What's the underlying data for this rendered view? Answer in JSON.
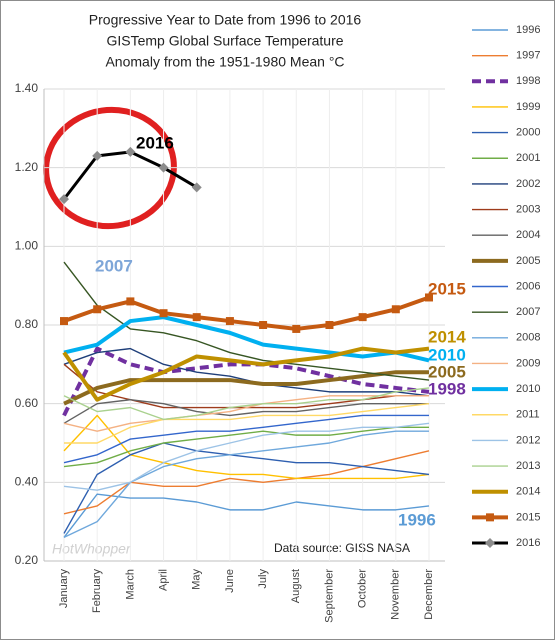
{
  "chart_data": {
    "type": "line",
    "title": [
      "Progressive Year to Date from 1996 to 2016",
      "GISTemp Global Surface Temperature",
      "Anomaly from the 1951-1980 Mean °C"
    ],
    "categories": [
      "January",
      "February",
      "March",
      "April",
      "May",
      "June",
      "July",
      "August",
      "September",
      "October",
      "November",
      "December"
    ],
    "ylim": [
      0.2,
      1.4
    ],
    "yticks": [
      {
        "value": 0.2,
        "label": "0.20"
      },
      {
        "value": 0.4,
        "label": "0.40"
      },
      {
        "value": 0.6,
        "label": "0.60"
      },
      {
        "value": 0.8,
        "label": "0.80"
      },
      {
        "value": 1.0,
        "label": "1.00"
      },
      {
        "value": 1.2,
        "label": "1.20"
      },
      {
        "value": 1.4,
        "label": "1.40"
      }
    ],
    "grid": true,
    "legend": "right",
    "series": [
      {
        "name": "1996",
        "color": "#5b9bd5",
        "values": [
          0.26,
          0.37,
          0.36,
          0.36,
          0.35,
          0.33,
          0.33,
          0.35,
          0.34,
          0.33,
          0.33,
          0.34
        ]
      },
      {
        "name": "1997",
        "color": "#ed7d31",
        "values": [
          0.32,
          0.34,
          0.4,
          0.39,
          0.39,
          0.41,
          0.4,
          0.41,
          0.42,
          0.44,
          0.46,
          0.48
        ]
      },
      {
        "name": "1998",
        "color": "#7030a0",
        "bold": true,
        "dashed": true,
        "values": [
          0.57,
          0.74,
          0.7,
          0.68,
          0.69,
          0.7,
          0.7,
          0.69,
          0.67,
          0.65,
          0.64,
          0.63
        ]
      },
      {
        "name": "1999",
        "color": "#ffc000",
        "values": [
          0.48,
          0.57,
          0.47,
          0.45,
          0.43,
          0.42,
          0.42,
          0.41,
          0.41,
          0.41,
          0.41,
          0.42
        ]
      },
      {
        "name": "2000",
        "color": "#2e5fb0",
        "values": [
          0.27,
          0.42,
          0.47,
          0.5,
          0.48,
          0.47,
          0.46,
          0.45,
          0.45,
          0.44,
          0.43,
          0.42
        ]
      },
      {
        "name": "2001",
        "color": "#70ad47",
        "values": [
          0.44,
          0.45,
          0.48,
          0.5,
          0.51,
          0.52,
          0.53,
          0.52,
          0.52,
          0.53,
          0.54,
          0.54
        ]
      },
      {
        "name": "2002",
        "color": "#1f3f7a",
        "values": [
          0.7,
          0.73,
          0.74,
          0.7,
          0.68,
          0.67,
          0.65,
          0.64,
          0.63,
          0.63,
          0.63,
          0.62
        ]
      },
      {
        "name": "2003",
        "color": "#9e3b1b",
        "values": [
          0.7,
          0.63,
          0.61,
          0.59,
          0.59,
          0.59,
          0.59,
          0.59,
          0.6,
          0.61,
          0.62,
          0.62
        ]
      },
      {
        "name": "2004",
        "color": "#636363",
        "values": [
          0.55,
          0.6,
          0.61,
          0.6,
          0.58,
          0.57,
          0.58,
          0.58,
          0.59,
          0.6,
          0.6,
          0.6
        ]
      },
      {
        "name": "2005",
        "color": "#8c6a1f",
        "bold": true,
        "values": [
          0.6,
          0.64,
          0.66,
          0.66,
          0.66,
          0.66,
          0.65,
          0.65,
          0.66,
          0.67,
          0.68,
          0.68
        ]
      },
      {
        "name": "2006",
        "color": "#3366cc",
        "values": [
          0.45,
          0.47,
          0.51,
          0.52,
          0.53,
          0.53,
          0.54,
          0.55,
          0.56,
          0.57,
          0.57,
          0.57
        ]
      },
      {
        "name": "2007",
        "color": "#375623",
        "values": [
          0.96,
          0.85,
          0.79,
          0.78,
          0.76,
          0.73,
          0.71,
          0.7,
          0.69,
          0.68,
          0.67,
          0.66
        ]
      },
      {
        "name": "2008",
        "color": "#6fa8dc",
        "values": [
          0.26,
          0.3,
          0.4,
          0.44,
          0.46,
          0.47,
          0.48,
          0.49,
          0.5,
          0.52,
          0.53,
          0.53
        ]
      },
      {
        "name": "2009",
        "color": "#f4b183",
        "values": [
          0.55,
          0.53,
          0.55,
          0.56,
          0.57,
          0.58,
          0.6,
          0.61,
          0.62,
          0.62,
          0.62,
          0.62
        ]
      },
      {
        "name": "2010",
        "color": "#00b0f0",
        "bold": true,
        "values": [
          0.73,
          0.75,
          0.81,
          0.82,
          0.8,
          0.78,
          0.75,
          0.74,
          0.73,
          0.72,
          0.73,
          0.71
        ]
      },
      {
        "name": "2011",
        "color": "#ffd966",
        "values": [
          0.5,
          0.5,
          0.54,
          0.56,
          0.56,
          0.56,
          0.57,
          0.57,
          0.57,
          0.58,
          0.59,
          0.6
        ]
      },
      {
        "name": "2012",
        "color": "#9dc3e6",
        "values": [
          0.39,
          0.38,
          0.4,
          0.45,
          0.48,
          0.5,
          0.52,
          0.53,
          0.53,
          0.54,
          0.54,
          0.55
        ]
      },
      {
        "name": "2013",
        "color": "#a9d18e",
        "values": [
          0.62,
          0.58,
          0.59,
          0.56,
          0.57,
          0.59,
          0.6,
          0.6,
          0.61,
          0.61,
          0.63,
          0.64
        ]
      },
      {
        "name": "2014",
        "color": "#bf9000",
        "bold": true,
        "values": [
          0.73,
          0.61,
          0.65,
          0.68,
          0.72,
          0.71,
          0.7,
          0.71,
          0.72,
          0.74,
          0.73,
          0.74
        ]
      },
      {
        "name": "2015",
        "color": "#c55a11",
        "bold": true,
        "marker": "square",
        "values": [
          0.81,
          0.84,
          0.86,
          0.83,
          0.82,
          0.81,
          0.8,
          0.79,
          0.8,
          0.82,
          0.84,
          0.87
        ]
      },
      {
        "name": "2016",
        "color": "#000000",
        "marker": "diamond",
        "values": [
          1.12,
          1.23,
          1.24,
          1.2,
          1.15,
          null,
          null,
          null,
          null,
          null,
          null,
          null
        ]
      }
    ],
    "annotations": [
      {
        "text": "2007",
        "color": "#7ea6d8"
      },
      {
        "text": "2015",
        "color": "#c55a11"
      },
      {
        "text": "2014",
        "color": "#bf9000"
      },
      {
        "text": "2010",
        "color": "#00b0f0"
      },
      {
        "text": "2005",
        "color": "#8c6a1f"
      },
      {
        "text": "1998",
        "color": "#7030a0"
      },
      {
        "text": "1996",
        "color": "#5b9bd5"
      },
      {
        "text": "2016",
        "color": "#000000"
      }
    ],
    "source": "Data source: GISS NASA",
    "watermark": "HotWhopper"
  }
}
